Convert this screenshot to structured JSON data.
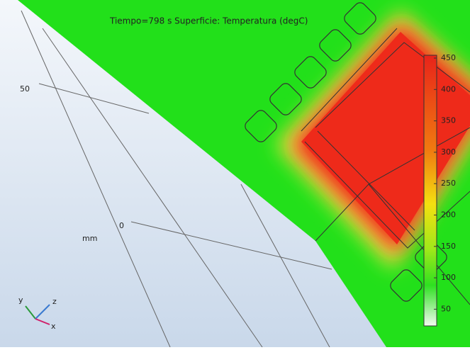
{
  "plot": {
    "title": "Tiempo=798 s   Superficie: Temperatura (degC)",
    "axis_labels": [
      "50",
      "0",
      "mm"
    ],
    "triad": [
      "y",
      "z",
      "x"
    ],
    "colorbar": {
      "ticks": [
        450,
        400,
        350,
        300,
        250,
        200,
        150,
        100,
        50
      ]
    }
  }
}
